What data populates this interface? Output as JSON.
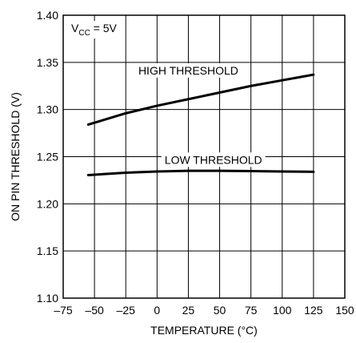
{
  "chart_data": {
    "type": "line",
    "title": "",
    "xlabel": "TEMPERATURE (°C)",
    "ylabel": "ON PIN THRESHOLD (V)",
    "xlim": [
      -75,
      150
    ],
    "ylim": [
      1.1,
      1.4
    ],
    "x_ticks": [
      -75,
      -50,
      -25,
      0,
      25,
      50,
      75,
      100,
      125,
      150
    ],
    "x_tick_labels": [
      "–75",
      "–50",
      "–25",
      "0",
      "25",
      "50",
      "75",
      "100",
      "125",
      "150"
    ],
    "y_ticks": [
      1.1,
      1.15,
      1.2,
      1.25,
      1.3,
      1.35,
      1.4
    ],
    "y_tick_labels": [
      "1.10",
      "1.15",
      "1.20",
      "1.25",
      "1.30",
      "1.35",
      "1.40"
    ],
    "grid": true,
    "condition_label": {
      "main": "V",
      "sub": "CC",
      "rest": " = 5V"
    },
    "series": [
      {
        "name": "HIGH THRESHOLD",
        "x": [
          -55,
          -25,
          0,
          25,
          50,
          75,
          100,
          125
        ],
        "y": [
          1.284,
          1.296,
          1.304,
          1.311,
          1.318,
          1.325,
          1.331,
          1.337
        ]
      },
      {
        "name": "LOW THRESHOLD",
        "x": [
          -55,
          -25,
          0,
          25,
          50,
          75,
          100,
          125
        ],
        "y": [
          1.2305,
          1.233,
          1.2343,
          1.235,
          1.235,
          1.2347,
          1.2343,
          1.234
        ]
      }
    ],
    "series_label_positions": [
      {
        "x": 25,
        "y": 1.3415
      },
      {
        "x": 45,
        "y": 1.2468
      }
    ]
  }
}
